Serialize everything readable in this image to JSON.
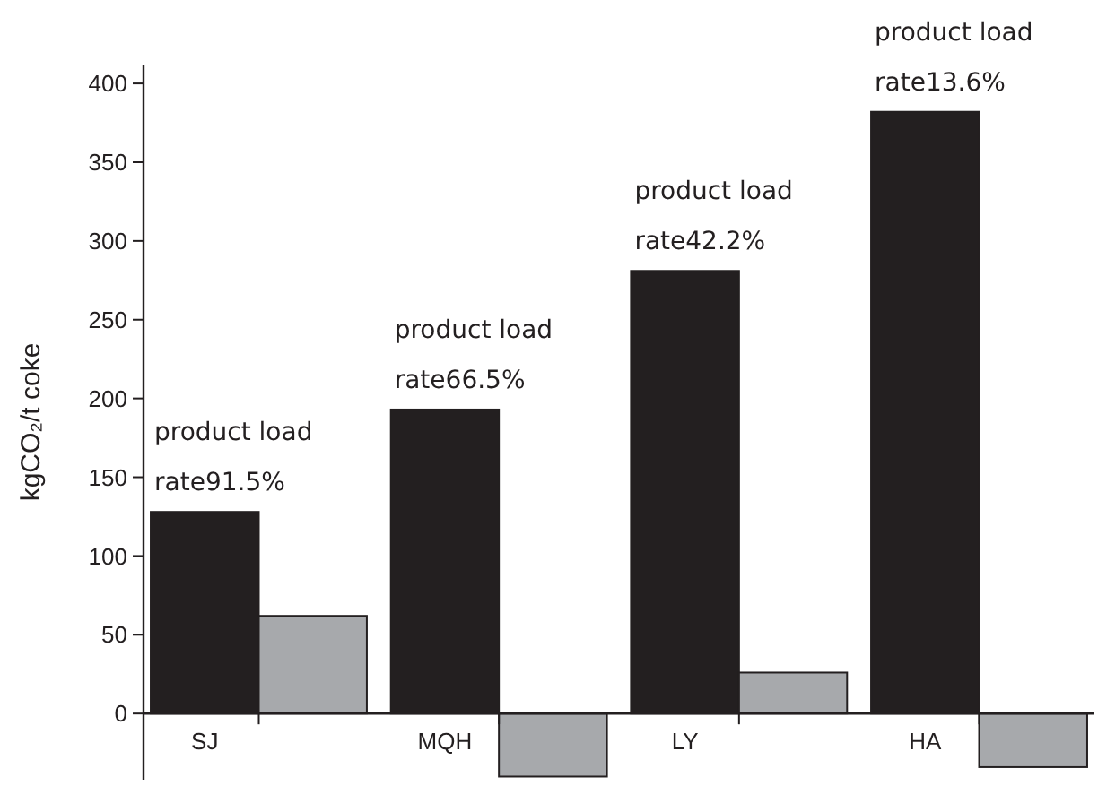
{
  "chart_data": {
    "type": "bar",
    "ylabel": "kgCO₂/t coke",
    "categories": [
      "SJ",
      "MQH",
      "LY",
      "HA"
    ],
    "series": [
      {
        "color": "#231f20",
        "values": [
          128,
          193,
          281,
          382
        ]
      },
      {
        "color": "#a7a9ac",
        "values": [
          62,
          -40,
          26,
          -34
        ]
      }
    ],
    "ylim": [
      -42,
      412
    ],
    "yticks": [
      0,
      50,
      100,
      150,
      200,
      250,
      300,
      350,
      400
    ],
    "annotations": [
      {
        "text": "product load\nrate91.5%",
        "x": "SJ",
        "y": 128
      },
      {
        "text": "product load\nrate66.5%",
        "x": "MQH",
        "y": 193
      },
      {
        "text": "product load\nrate42.2%",
        "x": "LY",
        "y": 281
      },
      {
        "text": "product load\nrate13.6%",
        "x": "HA",
        "y": 382
      }
    ]
  }
}
